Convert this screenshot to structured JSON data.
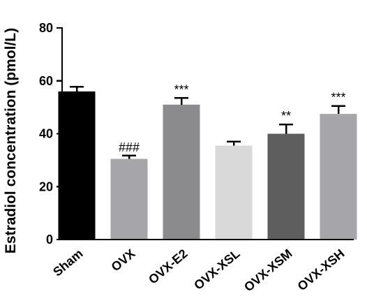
{
  "chart_data": {
    "type": "bar",
    "ylabel": "Estradiol concentration (pmol/L)",
    "xlabel": "",
    "ylim": [
      0,
      80
    ],
    "yticks": [
      0,
      20,
      40,
      60,
      80
    ],
    "grid": false,
    "categories": [
      "Sham",
      "OVX",
      "OVX-E2",
      "OVX-XSL",
      "OVX-XSM",
      "OVX-XSH"
    ],
    "values": [
      56,
      30.5,
      51,
      35.5,
      40,
      47.5
    ],
    "errors": [
      1.8,
      1.2,
      2.5,
      1.5,
      3.5,
      3.0
    ],
    "annotations": [
      "",
      "###",
      "***",
      "",
      "**",
      "***"
    ],
    "colors": [
      "#000000",
      "#a6a6aa",
      "#8b8b8d",
      "#d9d9d9",
      "#5e5e5e",
      "#a6a6aa"
    ]
  }
}
